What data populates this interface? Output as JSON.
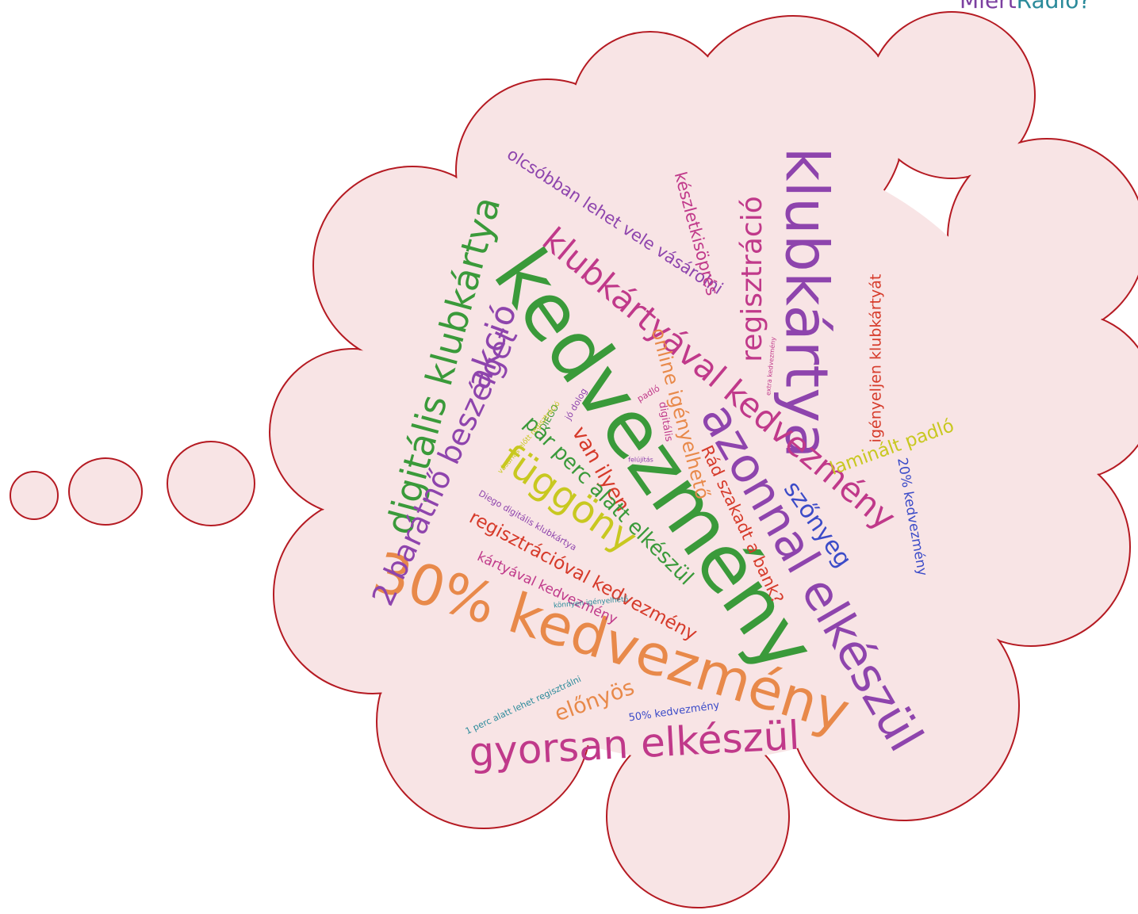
{
  "brand": {
    "first": "Miért",
    "second": "Rádió?"
  },
  "words": [
    "kedvezmény",
    "30% kedvezmény",
    "klubkártya",
    "azonnal elkészül",
    "gyorsan elkészül",
    "digitális klubkártya",
    "klubkártyával kedvezmény",
    "2 barátnő beszélget",
    "függöny",
    "regisztráció",
    "akció",
    "olcsóbban lehet vele vásárolni",
    "készletkisöprés",
    "online igényelhető",
    "Rád szakadt a bank?",
    "szőnyeg",
    "laminált padló",
    "igényeljen klubkártyát",
    "20% kedvezmény",
    "van ilyen",
    "pár perc alatt elkészül",
    "regisztrációval kedvezmény",
    "kártyával kedvezmény",
    "Diego digitális klubkártya",
    "előnyös",
    "1 perc alatt lehet regisztrálni",
    "50% kedvezmény",
    "könnyen igényelhető",
    "DIEGO",
    "jó dolog",
    "vásárlás előtt regisztráció",
    "padló",
    "digitális",
    "extra kedvezmény",
    "felújítás"
  ]
}
